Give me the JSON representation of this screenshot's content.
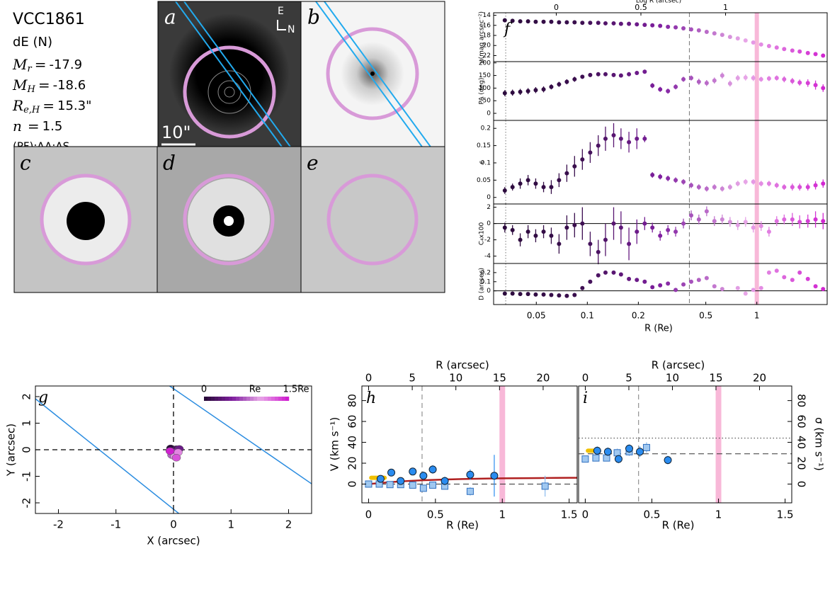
{
  "info": {
    "name": "VCC1861",
    "class": "dE (N)",
    "params": [
      {
        "symbol": "M",
        "sub": "r",
        "rel": "=",
        "value": "-17.9"
      },
      {
        "symbol": "M",
        "sub": "H",
        "rel": "=",
        "value": "-18.6"
      },
      {
        "symbol": "R",
        "sub": "e,H",
        "rel": "=",
        "value": "15.3\""
      },
      {
        "symbol": "n",
        "rel": "=",
        "value": "1.5"
      }
    ],
    "flags": "(PF);AA;AS"
  },
  "images": {
    "labels": [
      "a",
      "b",
      "c",
      "d",
      "e"
    ],
    "compass": [
      "E",
      "N"
    ],
    "scale": "10\""
  },
  "chart_data": [
    {
      "type": "scatter",
      "label": "f",
      "log_x": true,
      "xlabel": "R (Re)",
      "x2label": "Log R (arcsec)",
      "xlim": [
        0.028,
        2.6
      ],
      "xticks": [
        0.05,
        0.1,
        0.2,
        0.5,
        1
      ],
      "x2lim": [
        -0.37,
        1.6
      ],
      "x2ticks": [
        0,
        0.5,
        1
      ],
      "colormap": [
        "#2a0a3a",
        "#3a0f4e",
        "#8020a0",
        "#e8a8e8",
        "#d020d0"
      ],
      "vlines": [
        {
          "x": 0.033,
          "style": "dotted"
        },
        {
          "x": 0.4,
          "style": "dashed"
        },
        {
          "x": 1,
          "style": "band",
          "color": "#f8b8d8"
        }
      ],
      "x": [
        0.0326,
        0.0362,
        0.0402,
        0.0447,
        0.0496,
        0.0552,
        0.0613,
        0.0681,
        0.0757,
        0.0841,
        0.0935,
        0.104,
        0.116,
        0.128,
        0.143,
        0.158,
        0.176,
        0.196,
        0.218,
        0.242,
        0.269,
        0.299,
        0.332,
        0.369,
        0.41,
        0.455,
        0.506,
        0.562,
        0.625,
        0.695,
        0.772,
        0.858,
        0.953,
        1.06,
        1.18,
        1.31,
        1.45,
        1.62,
        1.79,
        2.0,
        2.22,
        2.46
      ],
      "panels": [
        {
          "ylabel": "μ(mag arcsec⁻²)",
          "ylim": [
            23.2,
            13.5
          ],
          "yticks": [
            14,
            16,
            18,
            20,
            22
          ],
          "values": [
            15.0,
            15.1,
            15.2,
            15.2,
            15.3,
            15.3,
            15.3,
            15.4,
            15.4,
            15.4,
            15.5,
            15.5,
            15.5,
            15.6,
            15.6,
            15.7,
            15.7,
            15.8,
            15.9,
            16.0,
            16.1,
            16.3,
            16.4,
            16.6,
            16.8,
            17.0,
            17.3,
            17.6,
            17.9,
            18.3,
            18.6,
            19.0,
            19.4,
            19.8,
            20.1,
            20.4,
            20.7,
            21.0,
            21.2,
            21.5,
            21.7,
            22.0
          ]
        },
        {
          "ylabel": "PA (deg)",
          "ylim": [
            -28,
            205
          ],
          "yticks": [
            0,
            50,
            100,
            150,
            200
          ],
          "values": [
            80,
            82,
            85,
            88,
            92,
            95,
            105,
            115,
            125,
            135,
            145,
            152,
            155,
            155,
            152,
            150,
            155,
            160,
            165,
            110,
            95,
            88,
            105,
            135,
            140,
            125,
            120,
            130,
            150,
            118,
            140,
            142,
            140,
            135,
            138,
            140,
            135,
            128,
            122,
            120,
            112,
            100
          ],
          "errors": [
            12,
            12,
            12,
            12,
            12,
            12,
            10,
            10,
            10,
            10,
            8,
            8,
            8,
            8,
            8,
            8,
            8,
            8,
            8,
            10,
            10,
            10,
            10,
            10,
            10,
            12,
            12,
            12,
            12,
            12,
            12,
            12,
            12,
            10,
            10,
            10,
            12,
            12,
            12,
            15,
            18,
            15
          ]
        },
        {
          "ylabel": "ε",
          "ylim": [
            -0.019,
            0.223
          ],
          "yticks": [
            0,
            0.05,
            0.1,
            0.15,
            0.2
          ],
          "values": [
            0.02,
            0.03,
            0.04,
            0.05,
            0.04,
            0.03,
            0.03,
            0.05,
            0.07,
            0.09,
            0.11,
            0.13,
            0.15,
            0.17,
            0.18,
            0.17,
            0.16,
            0.17,
            0.17,
            0.065,
            0.06,
            0.055,
            0.05,
            0.045,
            0.035,
            0.03,
            0.025,
            0.03,
            0.025,
            0.03,
            0.04,
            0.045,
            0.045,
            0.04,
            0.04,
            0.035,
            0.03,
            0.03,
            0.03,
            0.03,
            0.035,
            0.04
          ],
          "errors": [
            0.01,
            0.01,
            0.015,
            0.015,
            0.015,
            0.015,
            0.02,
            0.02,
            0.025,
            0.03,
            0.03,
            0.03,
            0.03,
            0.035,
            0.035,
            0.03,
            0.03,
            0.03,
            0.01,
            0.008,
            0.008,
            0.008,
            0.008,
            0.008,
            0.008,
            0.008,
            0.008,
            0.008,
            0.008,
            0.008,
            0.008,
            0.008,
            0.008,
            0.008,
            0.008,
            0.008,
            0.008,
            0.01,
            0.01,
            0.01,
            0.012,
            0.012
          ]
        },
        {
          "ylabel": "C₄x100",
          "ylim": [
            -4.9,
            2.4
          ],
          "yticks": [
            -4,
            -2,
            0,
            2
          ],
          "hline": 0,
          "values": [
            -0.5,
            -0.8,
            -2,
            -1,
            -1.5,
            -1,
            -1.5,
            -2.5,
            -0.5,
            -0.2,
            0,
            -2.5,
            -3.5,
            -2,
            0,
            -0.5,
            -2.5,
            -1,
            0,
            -0.5,
            -1.5,
            -0.8,
            -1,
            0,
            1,
            0.5,
            1.5,
            0.3,
            0.5,
            0.2,
            -0.2,
            0.2,
            -0.5,
            -0.3,
            -1,
            0.3,
            0.5,
            0.5,
            0.2,
            0.3,
            0.5,
            0.3
          ],
          "errors": [
            0.6,
            0.6,
            0.8,
            0.8,
            0.8,
            0.8,
            1,
            1.2,
            1.5,
            1.5,
            2,
            1.5,
            1.5,
            2,
            2,
            2,
            2,
            1.5,
            0.8,
            0.6,
            0.6,
            0.6,
            0.6,
            0.6,
            0.6,
            0.6,
            0.6,
            0.6,
            0.6,
            0.6,
            0.6,
            0.6,
            0.6,
            0.6,
            0.6,
            0.6,
            0.6,
            0.8,
            0.8,
            0.8,
            1,
            1
          ]
        },
        {
          "ylabel": "D (arcsec)",
          "ylim": [
            -0.15,
            0.3
          ],
          "yticks": [
            0,
            0.1,
            0.2
          ],
          "hline": 0,
          "values": [
            -0.03,
            -0.03,
            -0.035,
            -0.035,
            -0.04,
            -0.04,
            -0.045,
            -0.05,
            -0.055,
            -0.045,
            0.03,
            0.1,
            0.17,
            0.2,
            0.2,
            0.18,
            0.13,
            0.12,
            0.1,
            0.04,
            0.06,
            0.08,
            0.01,
            0.07,
            0.1,
            0.12,
            0.14,
            0.05,
            0.02,
            null,
            0.03,
            -0.03,
            0.01,
            0.03,
            0.2,
            0.22,
            0.15,
            0.12,
            0.2,
            0.13,
            0.05,
            0.02
          ]
        }
      ]
    },
    {
      "type": "scatter",
      "label": "g",
      "xlabel": "X (arcsec)",
      "ylabel": "Y (arcsec)",
      "xlim": [
        -2.4,
        2.4
      ],
      "ylim": [
        -2.4,
        2.4
      ],
      "xticks": [
        -2,
        -1,
        0,
        1,
        2
      ],
      "yticks": [
        -2,
        -1,
        0,
        1,
        2
      ],
      "colormap": [
        "#2a0a3a",
        "#8020a0",
        "#e8a8e8",
        "#d020d0"
      ],
      "colorbar_labels": [
        "0",
        "Re",
        "1.5Re"
      ],
      "x": [
        -0.05,
        0.05,
        0.1,
        0.0,
        -0.03,
        0.02,
        0.08,
        0.05,
        -0.06
      ],
      "y": [
        0.05,
        0.02,
        0.03,
        -0.1,
        -0.2,
        -0.25,
        -0.1,
        -0.3,
        -0.05
      ]
    },
    {
      "type": "errorbar",
      "label": "h",
      "xlabel": "R (Re)",
      "x2label": "R (arcsec)",
      "ylabel": "V (km s⁻¹)",
      "y_side": "left",
      "xlim": [
        -0.05,
        1.56
      ],
      "xticks": [
        0,
        0.5,
        1,
        1.5
      ],
      "x2lim": [
        -0.77,
        23.9
      ],
      "x2ticks": [
        0,
        5,
        10,
        15,
        20
      ],
      "ylim": [
        -18,
        94
      ],
      "yticks": [
        0,
        20,
        40,
        60,
        80
      ],
      "vlines": [
        {
          "x": 0.4,
          "style": "dashed"
        },
        {
          "x": 1,
          "style": "band",
          "color": "#f8b8d8"
        }
      ],
      "hlines": [
        {
          "y": 0,
          "style": "dashed"
        }
      ],
      "series": [
        {
          "marker": "bar",
          "color": "#f0c000",
          "x": [
            0.02,
            0.12
          ],
          "values": [
            6,
            6
          ]
        },
        {
          "marker": "line",
          "color": "#b02020",
          "x": [
            0,
            0.1,
            0.2,
            0.3,
            0.4,
            0.5,
            0.6,
            0.7,
            0.8,
            0.9,
            1.0,
            1.1,
            1.2,
            1.3,
            1.4,
            1.5,
            1.56
          ],
          "values": [
            0,
            1.2,
            2.2,
            3,
            3.6,
            4.1,
            4.5,
            4.8,
            5.1,
            5.3,
            5.5,
            5.6,
            5.7,
            5.8,
            5.9,
            6,
            6
          ]
        },
        {
          "marker": "square",
          "color": "#a0c8f0",
          "x": [
            0,
            0.08,
            0.16,
            0.24,
            0.33,
            0.41,
            0.48,
            0.57,
            0.76,
            1.32
          ],
          "values": [
            0,
            0,
            -0.5,
            -0.5,
            -1,
            -4,
            -1,
            -2,
            -7,
            -2
          ],
          "errors": [
            1,
            1,
            1,
            2,
            2,
            3,
            3,
            3,
            4,
            10
          ]
        },
        {
          "marker": "circle",
          "color": "#2a8cf0",
          "x": [
            0.09,
            0.17,
            0.24,
            0.33,
            0.41,
            0.48,
            0.57,
            0.76,
            0.94
          ],
          "values": [
            5,
            11,
            3,
            12,
            8,
            14,
            3,
            9,
            8
          ],
          "errors": [
            3,
            3,
            3,
            3,
            4,
            4,
            4,
            5,
            20
          ]
        }
      ]
    },
    {
      "type": "errorbar",
      "label": "i",
      "xlabel": "R (Re)",
      "x2label": "R (arcsec)",
      "ylabel": "σ (km s⁻¹)",
      "y_side": "right",
      "xlim": [
        -0.05,
        1.55
      ],
      "xticks": [
        0,
        0.5,
        1,
        1.5
      ],
      "x2lim": [
        -0.77,
        23.7
      ],
      "x2ticks": [
        0,
        5,
        10,
        15,
        20
      ],
      "ylim": [
        -18,
        94
      ],
      "yticks": [
        0,
        20,
        40,
        60,
        80
      ],
      "vlines": [
        {
          "x": 0.4,
          "style": "dashed"
        },
        {
          "x": 1,
          "style": "band",
          "color": "#f8b8d8"
        }
      ],
      "hlines": [
        {
          "y": 29,
          "style": "dashed"
        },
        {
          "y": 44,
          "style": "dotted"
        }
      ],
      "series": [
        {
          "marker": "bar",
          "color": "#f0c000",
          "x": [
            0.02,
            0.1
          ],
          "values": [
            32,
            32
          ]
        },
        {
          "marker": "square",
          "color": "#a0c8f0",
          "x": [
            0,
            0.08,
            0.16,
            0.24,
            0.33,
            0.46
          ],
          "values": [
            24,
            25,
            25,
            30,
            31,
            35
          ],
          "errors": [
            3,
            3,
            3,
            4,
            4,
            5
          ]
        },
        {
          "marker": "circle",
          "color": "#2a8cf0",
          "x": [
            0.09,
            0.17,
            0.25,
            0.33,
            0.41,
            0.62
          ],
          "values": [
            32,
            31,
            24,
            34,
            31,
            23
          ],
          "errors": [
            4,
            4,
            4,
            4,
            5,
            4
          ]
        }
      ]
    }
  ]
}
